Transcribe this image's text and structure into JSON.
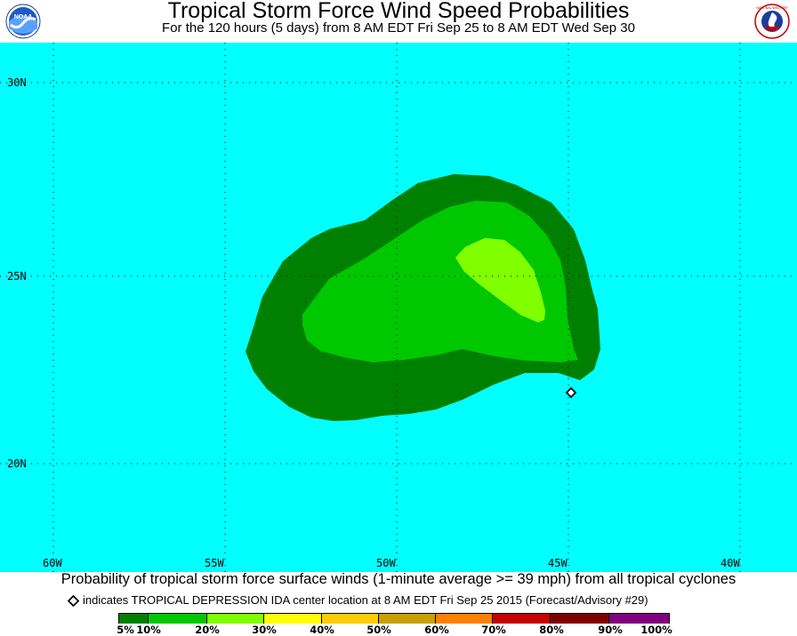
{
  "header": {
    "title": "Tropical Storm Force Wind Speed Probabilities",
    "subtitle": "For the 120 hours (5 days) from 8 AM EDT Fri Sep 25 to 8 AM EDT Wed Sep 30"
  },
  "logos": {
    "left": "NOAA",
    "right": "NATIONAL WEATHER SERVICE"
  },
  "map": {
    "ocean_color": "#00ffff",
    "grid_style": "dotted",
    "longitude_labels": [
      "60W",
      "55W",
      "50W",
      "45W",
      "40W"
    ],
    "latitude_labels": [
      "30N",
      "25N",
      "20N"
    ],
    "storm_center": {
      "lat": 21.9,
      "lon": -44.9,
      "marker": "diamond"
    }
  },
  "caption": "Probability of tropical storm force surface winds (1-minute average >= 39 mph) from all tropical cyclones",
  "center_note": "indicates TROPICAL DEPRESSION IDA center location at 8 AM EDT Fri Sep 25 2015 (Forecast/Advisory #29)",
  "legend": {
    "colors": [
      "#008000",
      "#00c800",
      "#80ff00",
      "#ffff00",
      "#ffcc00",
      "#c8a000",
      "#ff8000",
      "#c80000",
      "#800000",
      "#800080"
    ],
    "labels": [
      "5%",
      "10%",
      "20%",
      "30%",
      "40%",
      "50%",
      "60%",
      "70%",
      "80%",
      "90%",
      "100%"
    ]
  },
  "probability_colors": {
    "p5_10": "#008000",
    "p10_20": "#00c800",
    "p20_30": "#80ff00"
  }
}
